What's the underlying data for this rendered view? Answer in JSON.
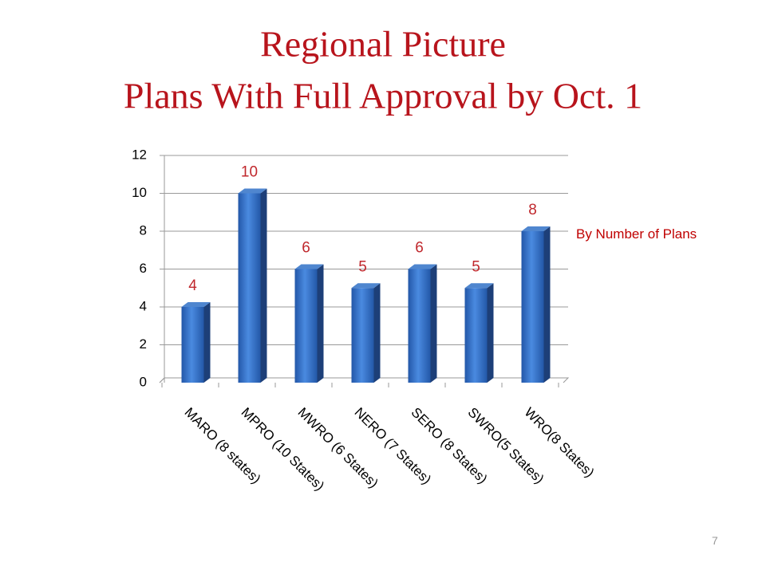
{
  "chart_data": {
    "type": "bar",
    "title": [
      "Regional Picture",
      "Plans With Full Approval by Oct. 1"
    ],
    "categories": [
      "MARO (8 states)",
      "MPRO (10 States)",
      "MWRO (6 States)",
      "NERO (7 States)",
      "SERO (8 States)",
      "SWRO(5 States)",
      "WRO(8 States)"
    ],
    "values": [
      4,
      10,
      6,
      5,
      6,
      5,
      8
    ],
    "color": "#2f6dc4",
    "label_color": "#c0282d",
    "ylim": [
      0,
      12
    ],
    "yticks": [
      0,
      2,
      4,
      6,
      8,
      10,
      12
    ],
    "grid": true,
    "annotation": "By Number of Plans",
    "page_number": "7"
  }
}
